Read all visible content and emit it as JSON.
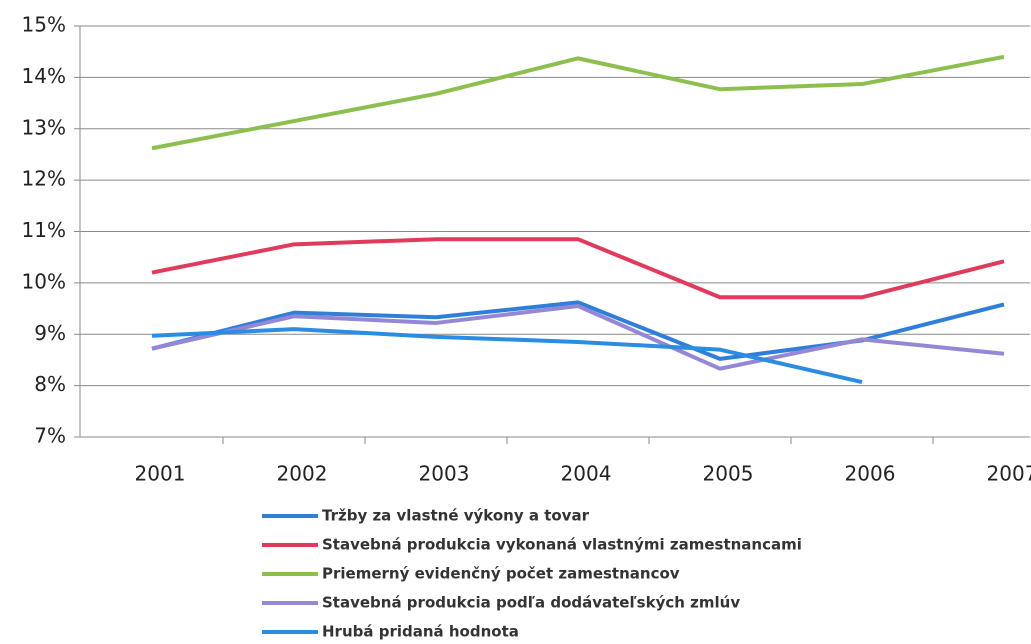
{
  "chart_data": {
    "type": "line",
    "categories": [
      "2001",
      "2002",
      "2003",
      "2004",
      "2005",
      "2006",
      "2007"
    ],
    "ylim": [
      7,
      15
    ],
    "yticks": [
      {
        "value": 7,
        "label": "7%"
      },
      {
        "value": 8,
        "label": "8%"
      },
      {
        "value": 9,
        "label": "9%"
      },
      {
        "value": 10,
        "label": "10%"
      },
      {
        "value": 11,
        "label": "11%"
      },
      {
        "value": 12,
        "label": "12%"
      },
      {
        "value": 13,
        "label": "13%"
      },
      {
        "value": 14,
        "label": "14%"
      },
      {
        "value": 15,
        "label": "15%"
      }
    ],
    "grid": true,
    "legend": "bottom",
    "series": [
      {
        "name": "Tržby za vlastné výkony a tovar",
        "color": "#2f7fd9",
        "values": [
          8.72,
          9.42,
          9.33,
          9.62,
          8.52,
          8.88,
          9.58
        ]
      },
      {
        "name": "Stavebná produkcia vykonaná vlastnými zamestnancami",
        "color": "#e03a5c",
        "values": [
          10.2,
          10.75,
          10.85,
          10.85,
          9.72,
          9.72,
          10.42
        ]
      },
      {
        "name": "Priemerný evidenčný počet zamestnancov",
        "color": "#8dbf50",
        "values": [
          12.62,
          13.15,
          13.68,
          14.37,
          13.77,
          13.87,
          14.4
        ]
      },
      {
        "name": "Stavebná produkcia podľa dodávateľských zmlúv",
        "color": "#9488d6",
        "values": [
          8.72,
          9.35,
          9.22,
          9.55,
          8.33,
          8.9,
          8.62
        ]
      },
      {
        "name": "Hrubá pridaná hodnota",
        "color": "#2b8de2",
        "values": [
          8.97,
          9.1,
          8.95,
          8.85,
          8.7,
          8.07,
          null
        ]
      }
    ]
  }
}
